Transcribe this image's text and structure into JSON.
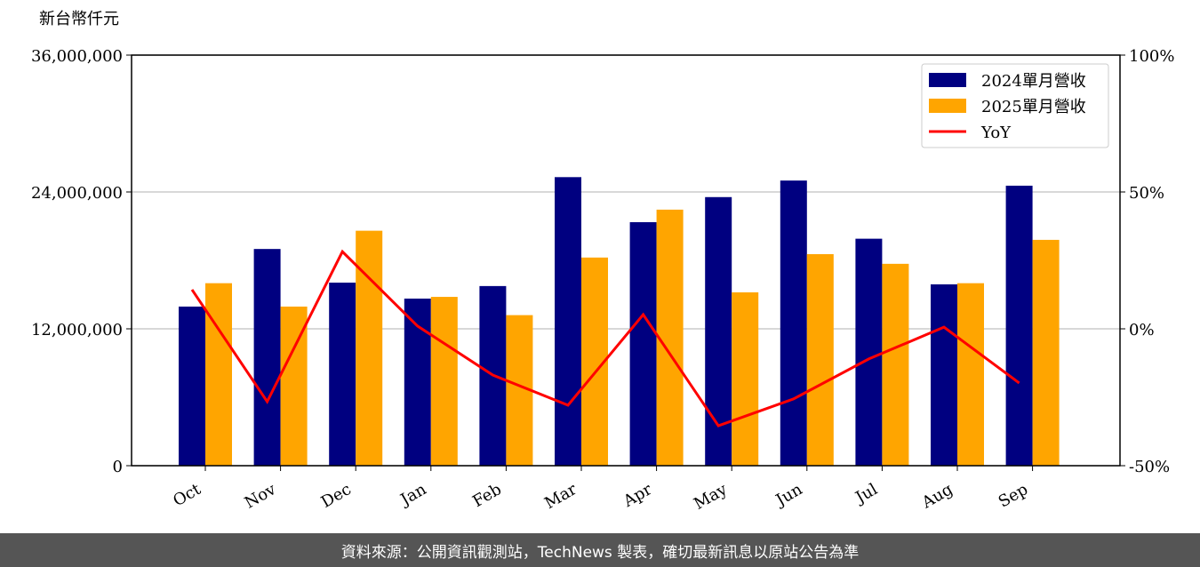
{
  "chart_data": {
    "type": "bar-line",
    "y_label": "新台幣仟元",
    "categories": [
      "Oct",
      "Nov",
      "Dec",
      "Jan",
      "Feb",
      "Mar",
      "Apr",
      "May",
      "Jun",
      "Jul",
      "Aug",
      "Sep"
    ],
    "series": [
      {
        "name": "2024單月營收",
        "color": "#000080",
        "type": "bar",
        "values": [
          13950000,
          19000000,
          16050000,
          14650000,
          15750000,
          25300000,
          21350000,
          23550000,
          25000000,
          19900000,
          15900000,
          24550000
        ]
      },
      {
        "name": "2025單月營收",
        "color": "#ffa500",
        "type": "bar",
        "values": [
          16000000,
          13950000,
          20600000,
          14800000,
          13200000,
          18250000,
          22450000,
          15200000,
          18550000,
          17700000,
          16000000,
          19800000
        ]
      },
      {
        "name": "YoY",
        "color": "#ff0000",
        "type": "line",
        "axis": "y2",
        "values": [
          14.3,
          -26.6,
          28.2,
          1.0,
          -16.9,
          -27.9,
          5.2,
          -35.4,
          -25.6,
          -11.0,
          0.6,
          -19.8
        ]
      }
    ],
    "ylim": [
      0,
      36000000
    ],
    "yticks": [
      0,
      {
        "value": 12000000,
        "label": "12,000,000"
      },
      {
        "value": 24000000,
        "label": "24,000,000"
      },
      {
        "value": 36000000,
        "label": "36,000,000"
      }
    ],
    "y2lim": [
      -50,
      100
    ],
    "y2ticks": [
      {
        "value": -50,
        "label": "-50%"
      },
      {
        "value": 0,
        "label": "0%"
      },
      {
        "value": 50,
        "label": "50%"
      },
      {
        "value": 100,
        "label": "100%"
      }
    ],
    "grid": true,
    "legend": "upper right",
    "footer": "資料來源：公開資訊觀測站，TechNews 製表，確切最新訊息以原站公告為準"
  }
}
